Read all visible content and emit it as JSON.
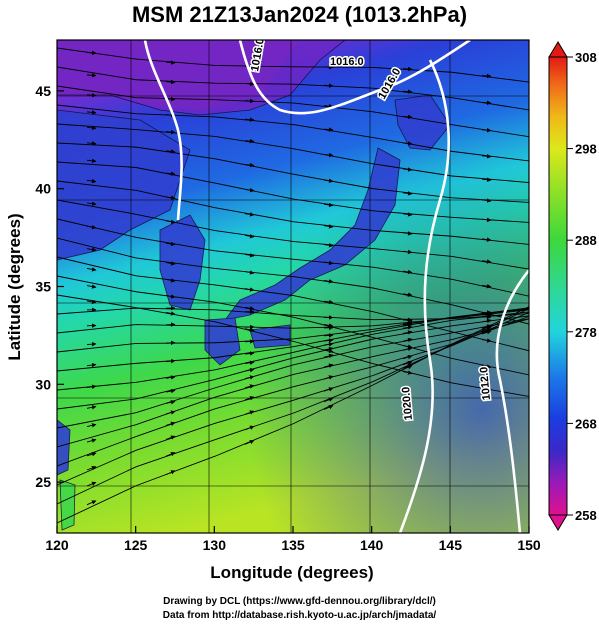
{
  "title": "MSM 21Z13Jan2024 (1013.2hPa)",
  "map": {
    "xlabel": "Longitude (degrees)",
    "ylabel": "Latitude  (degrees)",
    "lon_range": [
      120,
      150
    ],
    "lat_range": [
      22.4,
      47.6
    ],
    "lon_ticks": [
      120,
      125,
      130,
      135,
      140,
      145,
      150
    ],
    "lat_ticks": [
      25,
      30,
      35,
      40,
      45
    ],
    "isobar_labels": [
      "1016.0",
      "1016.0",
      "1016.0",
      "1020.0",
      "1012.0"
    ]
  },
  "colorbar": {
    "min": 258,
    "max": 308,
    "ticks": [
      258,
      268,
      278,
      288,
      298,
      308
    ]
  },
  "credits": {
    "line1": "Drawing by DCL (https://www.gfd-dennou.org/library/dcl/)",
    "line2": "Data from http://database.rish.kyoto-u.ac.jp/arch/jmadata/"
  },
  "colors": {
    "magenta": "#e8169a",
    "blue": "#2b3fd6",
    "cyan": "#20d0d8",
    "green": "#3fd84a",
    "yellow": "#e4ea1c",
    "red": "#e41a14"
  }
}
